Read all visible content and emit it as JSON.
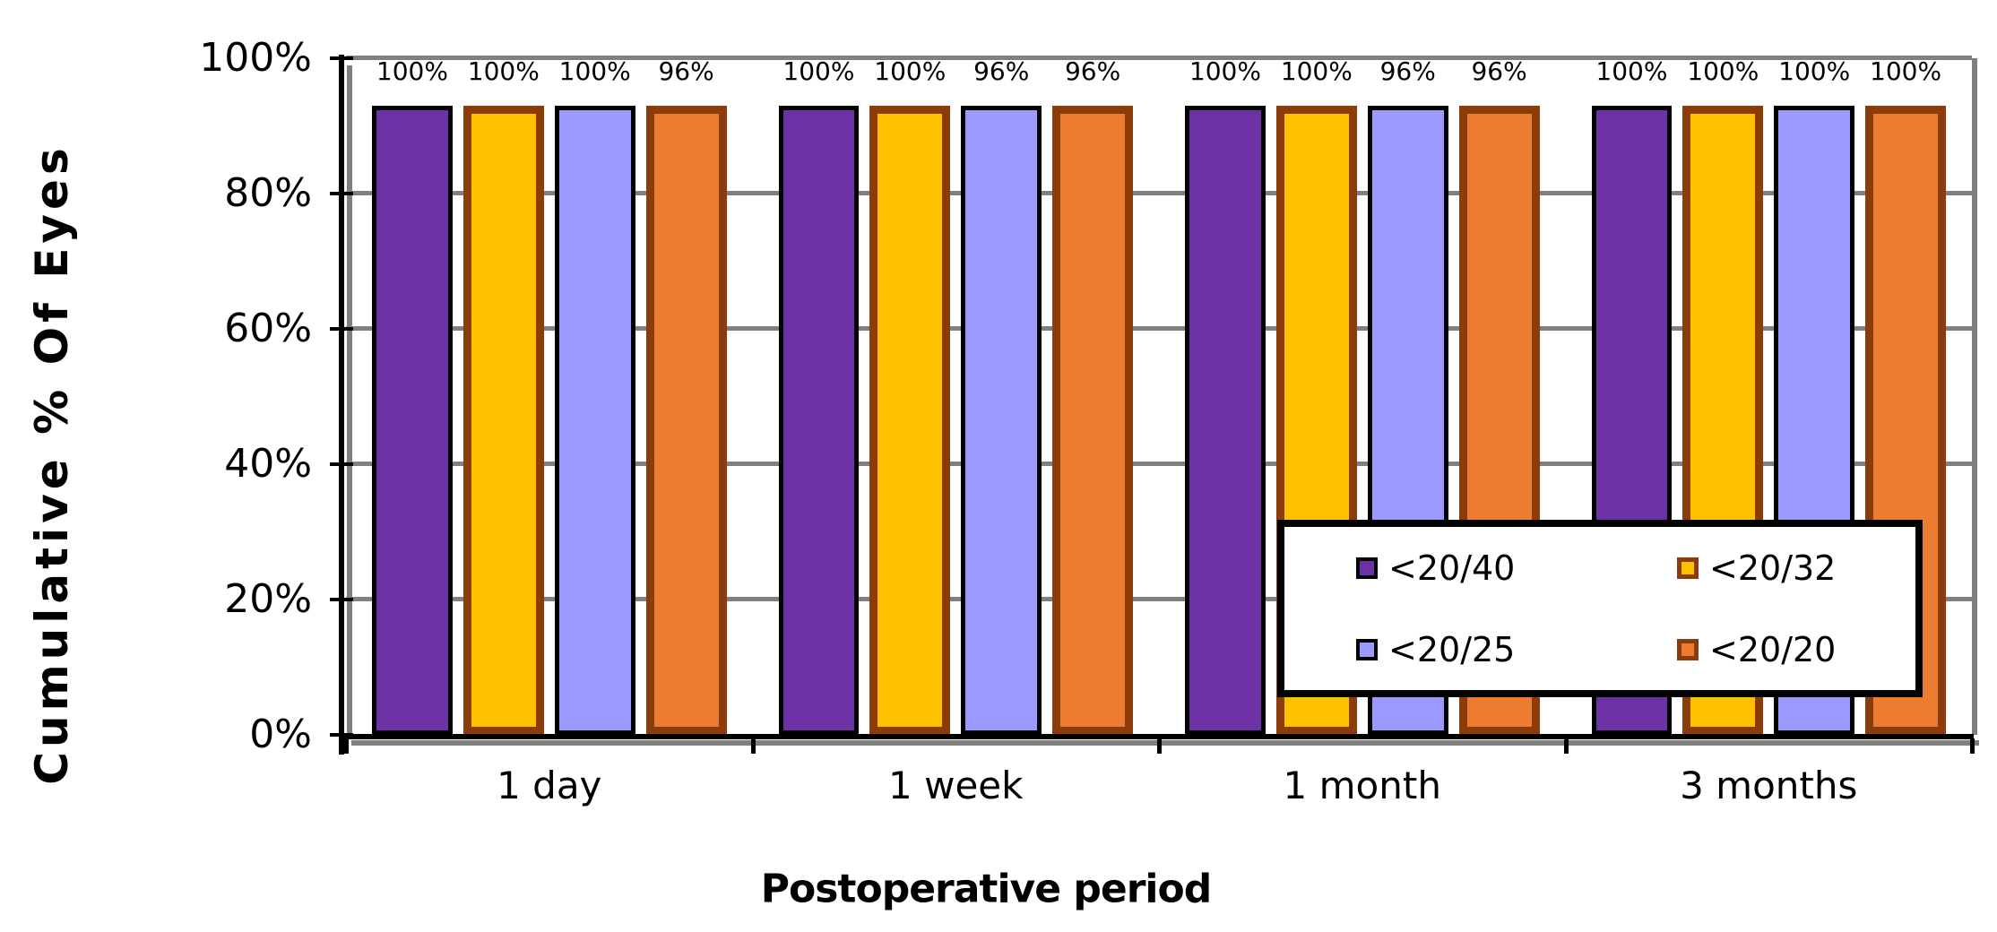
{
  "chart_data": {
    "type": "bar",
    "title": "",
    "xlabel": "Postoperative period",
    "ylabel": "Cumulative % Of Eyes",
    "categories": [
      "1 day",
      "1 week",
      "1 month",
      "3 months"
    ],
    "series": [
      {
        "name": "<20/40",
        "fill": "#6C31A5",
        "border": "#000000",
        "values": [
          100,
          100,
          100,
          100
        ]
      },
      {
        "name": "<20/32",
        "fill": "#FFC000",
        "border": "#8B3C0A",
        "values": [
          100,
          100,
          100,
          100
        ]
      },
      {
        "name": "<20/25",
        "fill": "#9999FF",
        "border": "#000000",
        "values": [
          100,
          96,
          96,
          100
        ]
      },
      {
        "name": "<20/20",
        "fill": "#EC7D30",
        "border": "#8B3C0A",
        "values": [
          96,
          96,
          96,
          100
        ]
      }
    ],
    "data_labels": [
      [
        "100%",
        "100%",
        "100%",
        "96%"
      ],
      [
        "100%",
        "100%",
        "96%",
        "96%"
      ],
      [
        "100%",
        "100%",
        "96%",
        "96%"
      ],
      [
        "100%",
        "100%",
        "100%",
        "100%"
      ]
    ],
    "y_axis": {
      "min": 0,
      "max": 100,
      "tick_step": 20,
      "ticks": [
        "0%",
        "20%",
        "40%",
        "60%",
        "80%",
        "100%"
      ]
    },
    "x_axis": {
      "boundary_ticks": 5
    },
    "grid": true,
    "gridline_color": "#808080",
    "axis_color": "#000000",
    "shadow_color": "#808080",
    "background_color": "#FFFFFF",
    "legend": {
      "position": "inside-bottom-right",
      "entries": [
        "<20/40",
        "<20/32",
        "<20/25",
        "<20/20"
      ]
    }
  }
}
